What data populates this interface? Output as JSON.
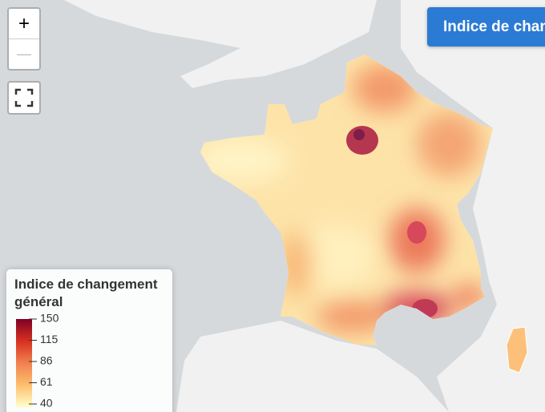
{
  "controls": {
    "zoom_in": "+",
    "zoom_out": "—"
  },
  "button": "Indice de chan",
  "legend": {
    "title": "Indice de changement général",
    "ticks": [
      150,
      115,
      86,
      61,
      40
    ],
    "colors": [
      "#800026",
      "#d7301f",
      "#f0814f",
      "#fdbf6f",
      "#ffffcc"
    ]
  }
}
